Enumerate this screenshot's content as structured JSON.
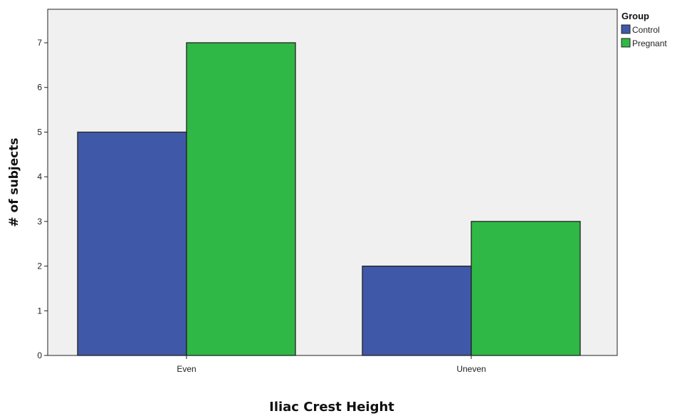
{
  "chart_data": {
    "type": "bar",
    "categories": [
      "Even",
      "Uneven"
    ],
    "series": [
      {
        "name": "Control",
        "values": [
          5,
          2
        ],
        "color": "#3f58a8"
      },
      {
        "name": "Pregnant",
        "values": [
          7,
          3
        ],
        "color": "#2fb845"
      }
    ],
    "xlabel": "Iliac Crest Height",
    "ylabel": "# of subjects",
    "ylim": [
      0,
      7.75
    ],
    "yticks": [
      0,
      1,
      2,
      3,
      4,
      5,
      6,
      7
    ],
    "legend_title": "Group",
    "legend_position": "top-right",
    "grid": false,
    "plot_background": "#f0f0f0"
  }
}
